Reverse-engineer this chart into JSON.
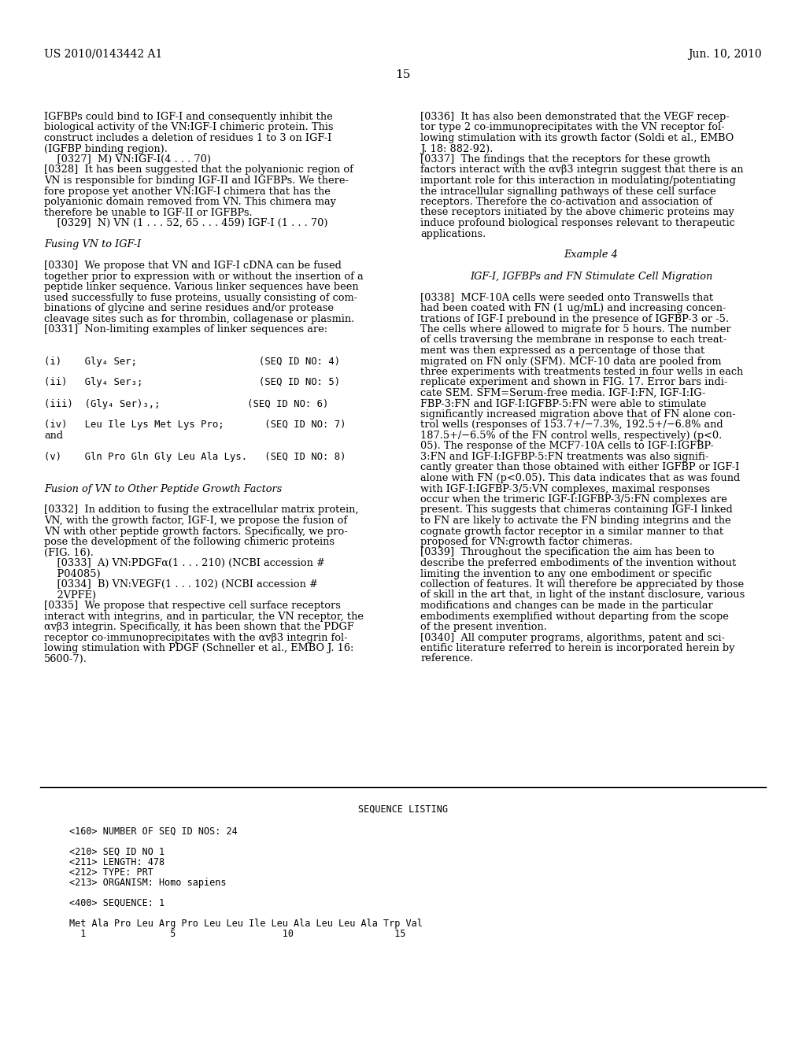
{
  "background_color": "#ffffff",
  "header_left": "US 2010/0143442 A1",
  "header_right": "Jun. 10, 2010",
  "page_number": "15",
  "left_column_lines": [
    {
      "text": "IGFBPs could bind to IGF-I and consequently inhibit the",
      "style": "normal",
      "indent": 0
    },
    {
      "text": "biological activity of the VN:IGF-I chimeric protein. This",
      "style": "normal",
      "indent": 0
    },
    {
      "text": "construct includes a deletion of residues 1 to 3 on IGF-I",
      "style": "normal",
      "indent": 0
    },
    {
      "text": "(IGFBP binding region).",
      "style": "normal",
      "indent": 0
    },
    {
      "text": "    [0327]  M) VN:IGF-I(4 . . . 70)",
      "style": "bold_bracket",
      "indent": 0
    },
    {
      "text": "[0328]  It has been suggested that the polyanionic region of",
      "style": "bold_bracket",
      "indent": 0
    },
    {
      "text": "VN is responsible for binding IGF-II and IGFBPs. We there-",
      "style": "normal",
      "indent": 0
    },
    {
      "text": "fore propose yet another VN:IGF-I chimera that has the",
      "style": "normal",
      "indent": 0
    },
    {
      "text": "polyanionic domain removed from VN. This chimera may",
      "style": "normal",
      "indent": 0
    },
    {
      "text": "therefore be unable to IGF-II or IGFBPs.",
      "style": "normal",
      "indent": 0
    },
    {
      "text": "    [0329]  N) VN (1 . . . 52, 65 . . . 459) IGF-I (1 . . . 70)",
      "style": "bold_bracket",
      "indent": 0
    },
    {
      "text": "",
      "style": "normal",
      "indent": 0
    },
    {
      "text": "Fusing VN to IGF-I",
      "style": "italic",
      "indent": 0
    },
    {
      "text": "",
      "style": "normal",
      "indent": 0
    },
    {
      "text": "[0330]  We propose that VN and IGF-I cDNA can be fused",
      "style": "bold_bracket",
      "indent": 0
    },
    {
      "text": "together prior to expression with or without the insertion of a",
      "style": "normal",
      "indent": 0
    },
    {
      "text": "peptide linker sequence. Various linker sequences have been",
      "style": "normal",
      "indent": 0
    },
    {
      "text": "used successfully to fuse proteins, usually consisting of com-",
      "style": "normal",
      "indent": 0
    },
    {
      "text": "binations of glycine and serine residues and/or protease",
      "style": "normal",
      "indent": 0
    },
    {
      "text": "cleavage sites such as for thrombin, collagenase or plasmin.",
      "style": "normal",
      "indent": 0
    },
    {
      "text": "[0331]  Non-limiting examples of linker sequences are:",
      "style": "bold_bracket",
      "indent": 0
    },
    {
      "text": "",
      "style": "normal",
      "indent": 0
    },
    {
      "text": "",
      "style": "normal",
      "indent": 0
    },
    {
      "text": "(i)    Gly₄ Ser;                     (SEQ ID NO: 4)",
      "style": "mono",
      "indent": 0
    },
    {
      "text": "",
      "style": "normal",
      "indent": 0
    },
    {
      "text": "(ii)   Gly₄ Ser₃;                    (SEQ ID NO: 5)",
      "style": "mono",
      "indent": 0
    },
    {
      "text": "",
      "style": "normal",
      "indent": 0
    },
    {
      "text": "(iii)  (Gly₄ Ser)₃,;               (SEQ ID NO: 6)",
      "style": "mono",
      "indent": 0
    },
    {
      "text": "",
      "style": "normal",
      "indent": 0
    },
    {
      "text": "(iv)   Leu Ile Lys Met Lys Pro;       (SEQ ID NO: 7)",
      "style": "mono",
      "indent": 0
    },
    {
      "text": "and",
      "style": "normal",
      "indent": 0
    },
    {
      "text": "",
      "style": "normal",
      "indent": 0
    },
    {
      "text": "(v)    Gln Pro Gln Gly Leu Ala Lys.   (SEQ ID NO: 8)",
      "style": "mono",
      "indent": 0
    },
    {
      "text": "",
      "style": "normal",
      "indent": 0
    },
    {
      "text": "",
      "style": "normal",
      "indent": 0
    },
    {
      "text": "Fusion of VN to Other Peptide Growth Factors",
      "style": "italic",
      "indent": 0
    },
    {
      "text": "",
      "style": "normal",
      "indent": 0
    },
    {
      "text": "[0332]  In addition to fusing the extracellular matrix protein,",
      "style": "bold_bracket",
      "indent": 0
    },
    {
      "text": "VN, with the growth factor, IGF-I, we propose the fusion of",
      "style": "normal",
      "indent": 0
    },
    {
      "text": "VN with other peptide growth factors. Specifically, we pro-",
      "style": "normal",
      "indent": 0
    },
    {
      "text": "pose the development of the following chimeric proteins",
      "style": "normal",
      "indent": 0
    },
    {
      "text": "(FIG. 16).",
      "style": "normal",
      "indent": 0
    },
    {
      "text": "    [0333]  A) VN:PDGFα(1 . . . 210) (NCBI accession #",
      "style": "bold_bracket",
      "indent": 0
    },
    {
      "text": "    P04085)",
      "style": "normal",
      "indent": 0
    },
    {
      "text": "    [0334]  B) VN:VEGF(1 . . . 102) (NCBI accession #",
      "style": "bold_bracket",
      "indent": 0
    },
    {
      "text": "    2VPFE)",
      "style": "normal",
      "indent": 0
    },
    {
      "text": "[0335]  We propose that respective cell surface receptors",
      "style": "bold_bracket",
      "indent": 0
    },
    {
      "text": "interact with integrins, and in particular, the VN receptor, the",
      "style": "normal",
      "indent": 0
    },
    {
      "text": "αvβ3 integrin. Specifically, it has been shown that the PDGF",
      "style": "normal",
      "indent": 0
    },
    {
      "text": "receptor co-immunoprecipitates with the αvβ3 integrin fol-",
      "style": "normal",
      "indent": 0
    },
    {
      "text": "lowing stimulation with PDGF (Schneller et al., EMBO J. 16:",
      "style": "normal",
      "indent": 0
    },
    {
      "text": "5600-7).",
      "style": "normal",
      "indent": 0
    }
  ],
  "right_column_lines": [
    {
      "text": "[0336]  It has also been demonstrated that the VEGF recep-",
      "style": "bold_bracket"
    },
    {
      "text": "tor type 2 co-immunoprecipitates with the VN receptor fol-",
      "style": "normal"
    },
    {
      "text": "lowing stimulation with its growth factor (Soldi et al., EMBO",
      "style": "normal"
    },
    {
      "text": "J. 18: 882-92).",
      "style": "normal"
    },
    {
      "text": "[0337]  The findings that the receptors for these growth",
      "style": "bold_bracket"
    },
    {
      "text": "factors interact with the αvβ3 integrin suggest that there is an",
      "style": "normal"
    },
    {
      "text": "important role for this interaction in modulating/potentiating",
      "style": "normal"
    },
    {
      "text": "the intracellular signalling pathways of these cell surface",
      "style": "normal"
    },
    {
      "text": "receptors. Therefore the co-activation and association of",
      "style": "normal"
    },
    {
      "text": "these receptors initiated by the above chimeric proteins may",
      "style": "normal"
    },
    {
      "text": "induce profound biological responses relevant to therapeutic",
      "style": "normal"
    },
    {
      "text": "applications.",
      "style": "normal"
    },
    {
      "text": "",
      "style": "normal"
    },
    {
      "text": "Example 4",
      "style": "center_italic"
    },
    {
      "text": "",
      "style": "normal"
    },
    {
      "text": "IGF-I, IGFBPs and FN Stimulate Cell Migration",
      "style": "center_italic"
    },
    {
      "text": "",
      "style": "normal"
    },
    {
      "text": "[0338]  MCF-10A cells were seeded onto Transwells that",
      "style": "bold_bracket"
    },
    {
      "text": "had been coated with FN (1 ug/mL) and increasing concen-",
      "style": "normal"
    },
    {
      "text": "trations of IGF-I prebound in the presence of IGFBP-3 or -5.",
      "style": "normal"
    },
    {
      "text": "The cells where allowed to migrate for 5 hours. The number",
      "style": "normal"
    },
    {
      "text": "of cells traversing the membrane in response to each treat-",
      "style": "normal"
    },
    {
      "text": "ment was then expressed as a percentage of those that",
      "style": "normal"
    },
    {
      "text": "migrated on FN only (SFM). MCF-10 data are pooled from",
      "style": "normal"
    },
    {
      "text": "three experiments with treatments tested in four wells in each",
      "style": "normal"
    },
    {
      "text": "replicate experiment and shown in FIG. 17. Error bars indi-",
      "style": "normal"
    },
    {
      "text": "cate SEM. SFM=Serum-free media. IGF-I:FN, IGF-I:IG-",
      "style": "normal"
    },
    {
      "text": "FBP-3:FN and IGF-I:IGFBP-5:FN were able to stimulate",
      "style": "normal"
    },
    {
      "text": "significantly increased migration above that of FN alone con-",
      "style": "normal"
    },
    {
      "text": "trol wells (responses of 153.7+/−7.3%, 192.5+/−6.8% and",
      "style": "normal"
    },
    {
      "text": "187.5+/−6.5% of the FN control wells, respectively) (p<0.",
      "style": "normal"
    },
    {
      "text": "05). The response of the MCF7-10A cells to IGF-I:IGFBP-",
      "style": "normal"
    },
    {
      "text": "3:FN and IGF-I:IGFBP-5:FN treatments was also signifi-",
      "style": "normal"
    },
    {
      "text": "cantly greater than those obtained with either IGFBP or IGF-I",
      "style": "normal"
    },
    {
      "text": "alone with FN (p<0.05). This data indicates that as was found",
      "style": "normal"
    },
    {
      "text": "with IGF-I:IGFBP-3/5:VN complexes, maximal responses",
      "style": "normal"
    },
    {
      "text": "occur when the trimeric IGF-I:IGFBP-3/5:FN complexes are",
      "style": "normal"
    },
    {
      "text": "present. This suggests that chimeras containing IGF-I linked",
      "style": "normal"
    },
    {
      "text": "to FN are likely to activate the FN binding integrins and the",
      "style": "normal"
    },
    {
      "text": "cognate growth factor receptor in a similar manner to that",
      "style": "normal"
    },
    {
      "text": "proposed for VN:growth factor chimeras.",
      "style": "normal"
    },
    {
      "text": "[0339]  Throughout the specification the aim has been to",
      "style": "bold_bracket"
    },
    {
      "text": "describe the preferred embodiments of the invention without",
      "style": "normal"
    },
    {
      "text": "limiting the invention to any one embodiment or specific",
      "style": "normal"
    },
    {
      "text": "collection of features. It will therefore be appreciated by those",
      "style": "normal"
    },
    {
      "text": "of skill in the art that, in light of the instant disclosure, various",
      "style": "normal"
    },
    {
      "text": "modifications and changes can be made in the particular",
      "style": "normal"
    },
    {
      "text": "embodiments exemplified without departing from the scope",
      "style": "normal"
    },
    {
      "text": "of the present invention.",
      "style": "normal"
    },
    {
      "text": "[0340]  All computer programs, algorithms, patent and sci-",
      "style": "bold_bracket"
    },
    {
      "text": "entific literature referred to herein is incorporated herein by",
      "style": "normal"
    },
    {
      "text": "reference.",
      "style": "normal"
    }
  ],
  "sequence_section_title": "SEQUENCE LISTING",
  "sequence_lines": [
    {
      "text": "<160> NUMBER OF SEQ ID NOS: 24",
      "style": "mono"
    },
    {
      "text": "",
      "style": "mono"
    },
    {
      "text": "<210> SEQ ID NO 1",
      "style": "mono"
    },
    {
      "text": "<211> LENGTH: 478",
      "style": "mono"
    },
    {
      "text": "<212> TYPE: PRT",
      "style": "mono"
    },
    {
      "text": "<213> ORGANISM: Homo sapiens",
      "style": "mono"
    },
    {
      "text": "",
      "style": "mono"
    },
    {
      "text": "<400> SEQUENCE: 1",
      "style": "mono"
    },
    {
      "text": "",
      "style": "mono"
    },
    {
      "text": "Met Ala Pro Leu Arg Pro Leu Leu Ile Leu Ala Leu Leu Ala Trp Val",
      "style": "mono"
    },
    {
      "text": "  1               5                   10                  15",
      "style": "mono"
    }
  ]
}
